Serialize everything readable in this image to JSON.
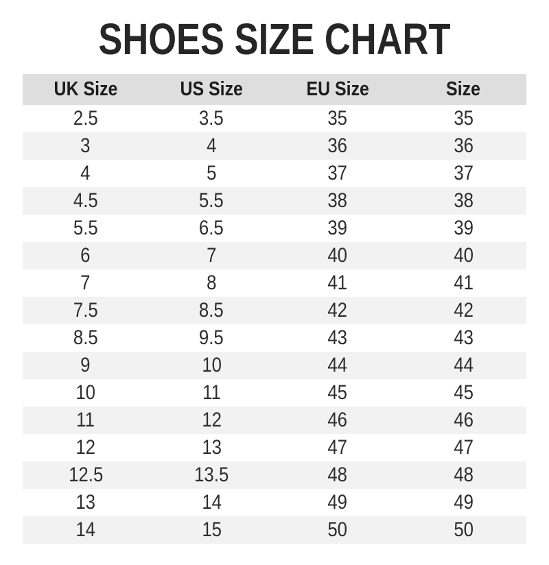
{
  "page": {
    "title": "SHOES SIZE CHART"
  },
  "chart_data": {
    "type": "table",
    "title": "SHOES SIZE CHART",
    "columns": [
      "UK Size",
      "US Size",
      "EU Size",
      "Size"
    ],
    "rows": [
      [
        "2.5",
        "3.5",
        "35",
        "35"
      ],
      [
        "3",
        "4",
        "36",
        "36"
      ],
      [
        "4",
        "5",
        "37",
        "37"
      ],
      [
        "4.5",
        "5.5",
        "38",
        "38"
      ],
      [
        "5.5",
        "6.5",
        "39",
        "39"
      ],
      [
        "6",
        "7",
        "40",
        "40"
      ],
      [
        "7",
        "8",
        "41",
        "41"
      ],
      [
        "7.5",
        "8.5",
        "42",
        "42"
      ],
      [
        "8.5",
        "9.5",
        "43",
        "43"
      ],
      [
        "9",
        "10",
        "44",
        "44"
      ],
      [
        "10",
        "11",
        "45",
        "45"
      ],
      [
        "11",
        "12",
        "46",
        "46"
      ],
      [
        "12",
        "13",
        "47",
        "47"
      ],
      [
        "12.5",
        "13.5",
        "48",
        "48"
      ],
      [
        "13",
        "14",
        "49",
        "49"
      ],
      [
        "14",
        "15",
        "50",
        "50"
      ]
    ]
  },
  "colors": {
    "header_bg": "#dedede",
    "stripe_bg": "#f2f2f2",
    "title_text": "#262626",
    "cell_text": "#2e2e2e"
  }
}
